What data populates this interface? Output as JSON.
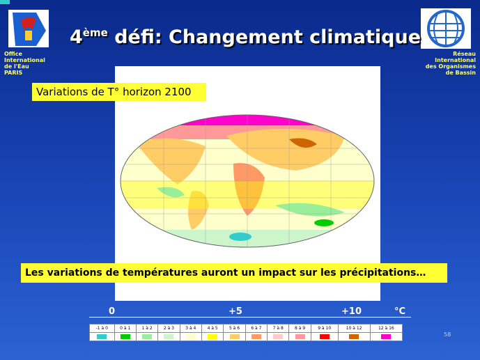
{
  "header": {
    "title": {
      "number": "4",
      "sup": "ème",
      "text": "défi: Changement climatique"
    },
    "left_org": [
      "Office",
      "International",
      "de l'Eau",
      "PARIS"
    ],
    "right_org": [
      "Réseau",
      "International",
      "des Organismes",
      "de Bassin"
    ]
  },
  "map": {
    "label": "Variations de T° horizon 2100"
  },
  "caption": "Les variations de températures auront un impact sur les précipitations…",
  "scale": {
    "labels": [
      "0",
      "+5",
      "+10"
    ],
    "unit": "°C"
  },
  "legend": [
    {
      "label": "-1 à 0",
      "color": "#33cccc"
    },
    {
      "label": "0 à 1",
      "color": "#00cc00"
    },
    {
      "label": "1 à 2",
      "color": "#99ee99"
    },
    {
      "label": "2 à 3",
      "color": "#ccf5cc"
    },
    {
      "label": "3 à 4",
      "color": "#ffffcc"
    },
    {
      "label": "4 à 5",
      "color": "#ffff00"
    },
    {
      "label": "5 à 6",
      "color": "#ffcc66"
    },
    {
      "label": "6 à 7",
      "color": "#ff9966"
    },
    {
      "label": "7 à 8",
      "color": "#ffcccc"
    },
    {
      "label": "8 à 9",
      "color": "#ff9999"
    },
    {
      "label": "9 à 10",
      "color": "#ff0000"
    },
    {
      "label": "10 à 12",
      "color": "#cc6600"
    },
    {
      "label": "12 à 16",
      "color": "#ff00cc"
    }
  ],
  "page_number": "58"
}
